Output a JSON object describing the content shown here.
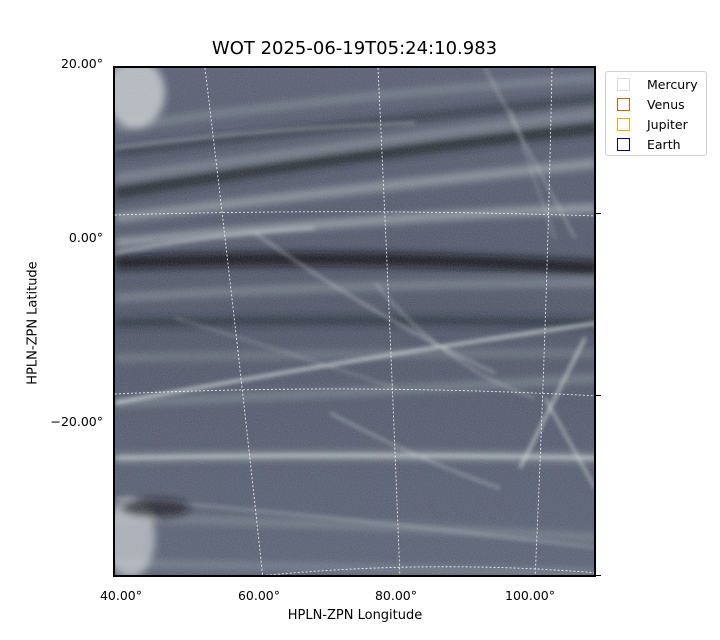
{
  "title": "WOT 2025-06-19T05:24:10.983",
  "axes": {
    "xlabel": "HPLN-ZPN Longitude",
    "ylabel": "HPLN-ZPN Latitude",
    "xticks": [
      "40.00°",
      "60.00°",
      "80.00°",
      "100.00°"
    ],
    "yticks": [
      "20.00°",
      "0.00°",
      "−20.00°"
    ]
  },
  "legend": [
    {
      "label": "Mercury",
      "color": "#d9d9d9"
    },
    {
      "label": "Venus",
      "color": "#d95f0e"
    },
    {
      "label": "Jupiter",
      "color": "#e6a817"
    },
    {
      "label": "Earth",
      "color": "#000080"
    }
  ],
  "image": {
    "description_colors": {
      "background": "#4f566a",
      "streak": "#d8e2df",
      "dark_band": "#0c0f14"
    }
  }
}
